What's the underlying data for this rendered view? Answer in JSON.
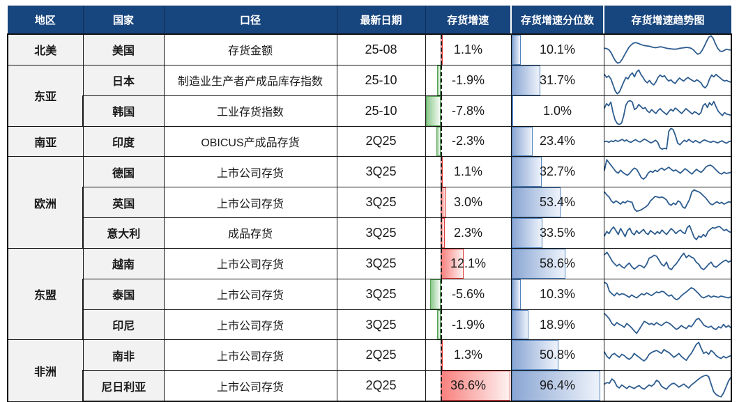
{
  "style": {
    "colors": {
      "header_bg": "#17457e",
      "header_text": "#ffffff",
      "row_label_bg": "#f2f2f2",
      "grid_border": "#141414",
      "positive_bar_border": "#e23e3e",
      "positive_bar_fill": "#f9807d",
      "negative_bar_border": "#56a356",
      "negative_bar_fill": "#8bc88b",
      "percentile_bar_border": "#4f81bd",
      "percentile_bar_fill": "#8aa6d3",
      "sparkline": "#2d5c8f"
    }
  },
  "chart_data": {
    "type": "table",
    "columns": [
      "地区",
      "国家",
      "口径",
      "最新日期",
      "存货增速",
      "存货增速分位数",
      "存货增速趋势图"
    ],
    "growth_axis": {
      "min": -7.8,
      "max": 36.6
    },
    "percentile_axis": {
      "min": 0,
      "max": 100
    },
    "rows": [
      {
        "region": "北美",
        "region_span": 1,
        "country": "美国",
        "metric": "存货金额",
        "date": "25-08",
        "growth": 1.1,
        "growth_label": "1.1%",
        "percentile": 10.1,
        "percentile_label": "10.1%",
        "spark": [
          55,
          54,
          50,
          40,
          25,
          12,
          5,
          8,
          18,
          32,
          45,
          58,
          66,
          72,
          74,
          72,
          69,
          66,
          64,
          63,
          62,
          60,
          58,
          57,
          58,
          60,
          59,
          57,
          55,
          54,
          53,
          52,
          52,
          53,
          55,
          56,
          57,
          58,
          57,
          55,
          50,
          42,
          35,
          38,
          48,
          62,
          78,
          92,
          97,
          88,
          70,
          55,
          46,
          44,
          48,
          52,
          50,
          49
        ]
      },
      {
        "region": "东亚",
        "region_span": 2,
        "country": "日本",
        "metric": "制造业生产者产成品库存指数",
        "date": "25-10",
        "growth": -1.9,
        "growth_label": "-1.9%",
        "percentile": 31.7,
        "percentile_label": "31.7%",
        "spark": [
          70,
          60,
          65,
          55,
          35,
          15,
          5,
          12,
          28,
          45,
          60,
          55,
          68,
          75,
          62,
          78,
          85,
          70,
          60,
          48,
          42,
          50,
          40,
          35,
          45,
          60,
          68,
          62,
          66,
          55,
          48,
          52,
          44,
          40,
          50,
          58,
          52,
          48,
          55,
          60,
          54,
          50,
          46,
          52,
          48,
          42,
          30,
          25,
          35,
          55,
          68,
          62,
          70,
          64,
          58,
          52,
          48,
          50,
          46,
          44
        ]
      },
      {
        "country": "韩国",
        "metric": "工业存货指数",
        "date": "25-10",
        "growth": -7.8,
        "growth_label": "-7.8%",
        "percentile": 1.0,
        "percentile_label": "1.0%",
        "spark": [
          60,
          75,
          68,
          80,
          45,
          20,
          8,
          5,
          10,
          35,
          70,
          82,
          85,
          80,
          55,
          60,
          72,
          65,
          58,
          62,
          50,
          45,
          55,
          48,
          42,
          52,
          58,
          50,
          44,
          38,
          48,
          56,
          50,
          60,
          55,
          48,
          42,
          50,
          58,
          52,
          46,
          40,
          48,
          44,
          38,
          45,
          68,
          75,
          62,
          78,
          70,
          82,
          65,
          50,
          42,
          35,
          45,
          40,
          38,
          36
        ]
      },
      {
        "region": "南亚",
        "region_span": 1,
        "country": "印度",
        "metric": "OBICUS产成品存货",
        "date": "2Q25",
        "growth": -2.3,
        "growth_label": "-2.3%",
        "percentile": 23.4,
        "percentile_label": "23.4%",
        "spark": [
          50,
          52,
          48,
          53,
          50,
          55,
          51,
          54,
          58,
          52,
          56,
          50,
          48,
          53,
          57,
          52,
          49,
          54,
          59,
          55,
          50,
          46,
          50,
          55,
          48,
          30,
          25,
          28,
          26,
          85,
          95,
          90,
          70,
          45,
          40,
          48,
          55,
          50,
          58,
          52,
          48,
          54,
          50,
          46,
          52,
          56,
          53,
          50,
          48,
          52,
          49,
          46,
          50,
          53,
          48,
          45,
          50,
          52
        ]
      },
      {
        "region": "欧洲",
        "region_span": 3,
        "country": "德国",
        "metric": "上市公司存货",
        "date": "3Q25",
        "growth": 1.1,
        "growth_label": "1.1%",
        "percentile": 32.7,
        "percentile_label": "32.7%",
        "spark": [
          55,
          90,
          80,
          70,
          60,
          50,
          45,
          55,
          48,
          42,
          38,
          45,
          55,
          62,
          58,
          45,
          30,
          25,
          32,
          45,
          52,
          48,
          55,
          50,
          58,
          62,
          55,
          60,
          65,
          58,
          52,
          56,
          50,
          45,
          52,
          60,
          55,
          48,
          42,
          50,
          58,
          52,
          48,
          55,
          65,
          70,
          72,
          68,
          60,
          52,
          45,
          42,
          48,
          44,
          46,
          48
        ]
      },
      {
        "country": "英国",
        "metric": "上市公司存货",
        "date": "3Q25",
        "growth": 3.0,
        "growth_label": "3.0%",
        "percentile": 53.4,
        "percentile_label": "53.4%",
        "spark": [
          85,
          75,
          68,
          55,
          48,
          55,
          50,
          44,
          52,
          48,
          55,
          52,
          50,
          28,
          20,
          22,
          25,
          30,
          35,
          42,
          55,
          62,
          70,
          68,
          66,
          68,
          64,
          58,
          45,
          40,
          48,
          42,
          55,
          50,
          35,
          30,
          45,
          60,
          85,
          92,
          88,
          85,
          80,
          72,
          65,
          55,
          45,
          42,
          48,
          52,
          46,
          50,
          44,
          48,
          52,
          50
        ]
      },
      {
        "country": "意大利",
        "metric": "成品存货",
        "date": "3Q25",
        "growth": 2.3,
        "growth_label": "2.3%",
        "percentile": 33.5,
        "percentile_label": "33.5%",
        "spark": [
          40,
          55,
          48,
          62,
          70,
          58,
          45,
          65,
          52,
          38,
          58,
          66,
          50,
          44,
          58,
          48,
          55,
          62,
          50,
          45,
          58,
          52,
          46,
          55,
          48,
          60,
          52,
          45,
          55,
          65,
          58,
          48,
          55,
          60,
          52,
          48,
          68,
          75,
          55,
          35,
          28,
          40,
          35,
          45,
          38,
          55,
          62,
          68,
          66,
          70,
          72,
          65,
          58,
          62,
          55,
          52
        ]
      },
      {
        "region": "东盟",
        "region_span": 3,
        "country": "越南",
        "metric": "上市公司存货",
        "date": "3Q25",
        "growth": 12.1,
        "growth_label": "12.1%",
        "percentile": 58.6,
        "percentile_label": "58.6%",
        "spark": [
          80,
          88,
          75,
          60,
          50,
          42,
          48,
          40,
          35,
          45,
          52,
          40,
          32,
          38,
          45,
          42,
          36,
          48,
          68,
          72,
          78,
          75,
          62,
          48,
          42,
          55,
          35,
          30,
          42,
          50,
          62,
          75,
          85,
          70,
          78,
          72,
          68,
          55,
          48,
          35,
          30,
          38,
          48,
          55,
          42,
          38,
          45,
          52,
          58,
          62,
          55,
          60
        ]
      },
      {
        "country": "泰国",
        "metric": "上市公司存货",
        "date": "3Q25",
        "growth": -5.6,
        "growth_label": "-5.6%",
        "percentile": 10.3,
        "percentile_label": "10.3%",
        "spark": [
          90,
          85,
          60,
          52,
          45,
          55,
          48,
          52,
          50,
          45,
          40,
          48,
          42,
          38,
          45,
          52,
          48,
          55,
          50,
          46,
          52,
          58,
          55,
          60,
          58,
          50,
          44,
          48,
          38,
          32,
          36,
          45,
          52,
          58,
          65,
          72,
          68,
          60,
          52,
          42,
          38,
          42,
          46,
          40,
          44,
          42,
          40,
          44,
          42,
          40,
          38,
          42
        ]
      },
      {
        "country": "印尼",
        "metric": "上市公司存货",
        "date": "3Q25",
        "growth": -1.9,
        "growth_label": "-1.9%",
        "percentile": 18.9,
        "percentile_label": "18.9%",
        "spark": [
          88,
          80,
          70,
          55,
          48,
          58,
          52,
          48,
          42,
          55,
          48,
          40,
          30,
          22,
          35,
          48,
          62,
          58,
          52,
          55,
          50,
          58,
          52,
          48,
          55,
          60,
          56,
          50,
          42,
          35,
          40,
          48,
          42,
          38,
          48,
          44,
          55,
          68,
          72,
          62,
          50,
          45,
          42,
          46,
          38,
          35,
          44,
          40,
          52,
          42,
          48,
          40
        ]
      },
      {
        "region": "非洲",
        "region_span": 2,
        "country": "南非",
        "metric": "上市公司存货",
        "date": "2Q25",
        "growth": 1.3,
        "growth_label": "1.3%",
        "percentile": 50.8,
        "percentile_label": "50.8%",
        "spark": [
          60,
          45,
          38,
          50,
          55,
          48,
          42,
          52,
          48,
          40,
          35,
          42,
          55,
          48,
          42,
          35,
          30,
          38,
          52,
          58,
          62,
          65,
          60,
          55,
          68,
          62,
          58,
          50,
          42,
          48,
          55,
          45,
          38,
          32,
          45,
          55,
          70,
          85,
          92,
          72,
          55,
          60,
          52,
          65,
          58,
          48,
          42,
          38,
          45,
          40,
          44,
          48
        ]
      },
      {
        "country": "尼日利亚",
        "metric": "上市公司存货",
        "date": "2Q25",
        "growth": 36.6,
        "growth_label": "36.6%",
        "percentile": 96.4,
        "percentile_label": "96.4%",
        "spark": [
          55,
          60,
          58,
          72,
          65,
          48,
          42,
          52,
          46,
          40,
          48,
          44,
          40,
          46,
          50,
          42,
          38,
          45,
          52,
          48,
          55,
          68,
          62,
          48,
          42,
          38,
          48,
          55,
          58,
          52,
          45,
          50,
          55,
          48,
          42,
          52,
          58,
          65,
          72,
          78,
          82,
          85,
          80,
          55,
          30,
          20,
          15,
          12,
          25,
          45,
          65,
          78
        ]
      }
    ]
  }
}
